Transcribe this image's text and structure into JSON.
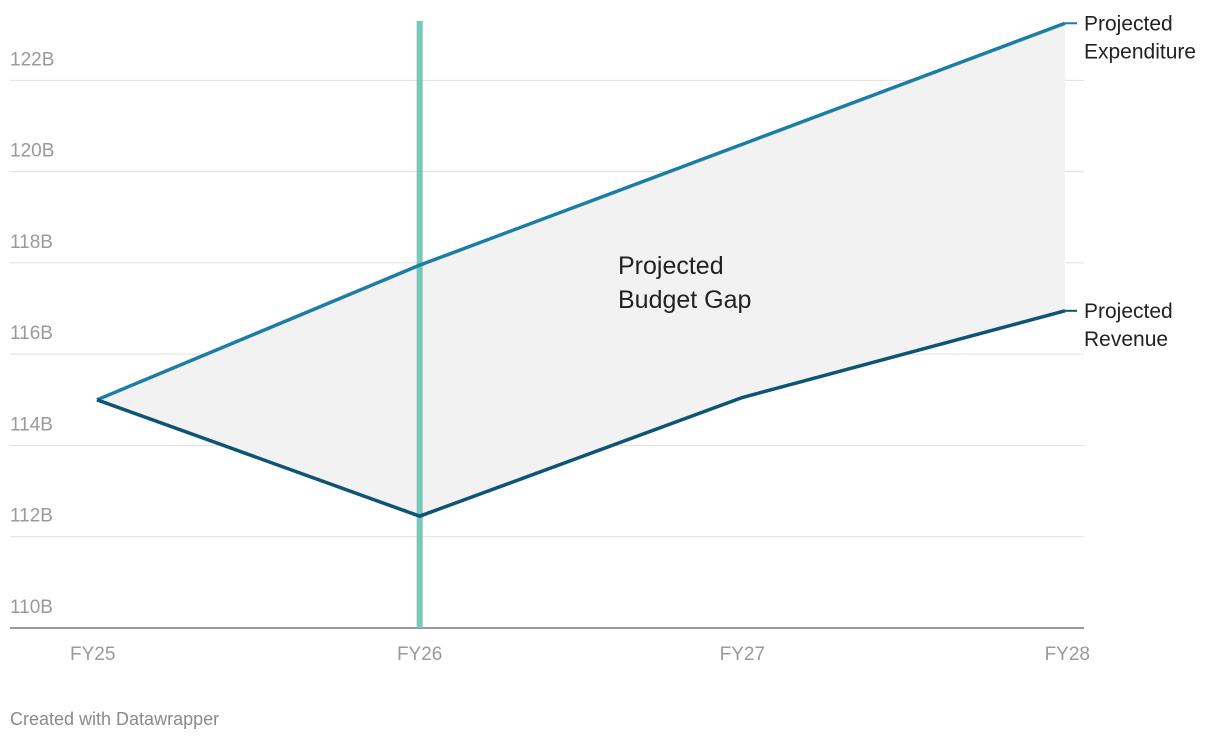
{
  "chart_data": {
    "type": "line",
    "categories": [
      "FY25",
      "FY26",
      "FY27",
      "FY28"
    ],
    "series": [
      {
        "name": "Projected Expenditure",
        "color": "#1b7fa5",
        "values": [
          115.0,
          117.95,
          120.6,
          123.25
        ]
      },
      {
        "name": "Projected Revenue",
        "color": "#0e5474",
        "values": [
          115.0,
          112.45,
          115.05,
          116.95
        ]
      }
    ],
    "ylim": [
      110,
      123.3
    ],
    "yticks": [
      {
        "value": 110,
        "label": "110B"
      },
      {
        "value": 112,
        "label": "112B"
      },
      {
        "value": 114,
        "label": "114B"
      },
      {
        "value": 116,
        "label": "116B"
      },
      {
        "value": 118,
        "label": "118B"
      },
      {
        "value": 120,
        "label": "120B"
      },
      {
        "value": 122,
        "label": "122B"
      }
    ],
    "grid": true,
    "fill_between": {
      "color": "#f2f2f2"
    },
    "vline": {
      "x": "FY26",
      "color": "#76c8ba"
    },
    "annotation": "Projected Budget Gap",
    "footer": "Created with Datawrapper"
  }
}
